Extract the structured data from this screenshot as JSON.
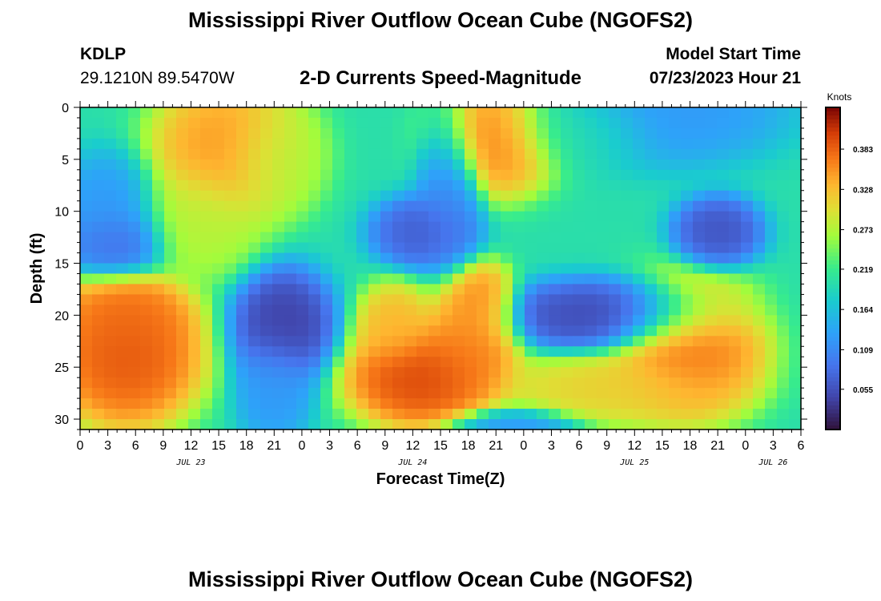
{
  "header": {
    "title": "Mississippi River Outflow Ocean Cube (NGOFS2)",
    "station_id": "KDLP",
    "station_coords": "29.1210N  89.5470W",
    "plot_title": "2-D Currents Speed-Magnitude",
    "model_label": "Model Start Time",
    "model_time": "07/23/2023 Hour 21"
  },
  "footer": {
    "title": "Mississippi River Outflow Ocean Cube (NGOFS2)"
  },
  "chart_data": {
    "type": "heatmap",
    "xlabel": "Forecast Time(Z)",
    "ylabel": "Depth (ft)",
    "xlim": [
      0,
      78
    ],
    "ylim": [
      0,
      31
    ],
    "x_tick_labels": [
      "0",
      "3",
      "6",
      "9",
      "12",
      "15",
      "18",
      "21",
      "0",
      "3",
      "6",
      "9",
      "12",
      "15",
      "18",
      "21",
      "0",
      "3",
      "6",
      "9",
      "12",
      "15",
      "18",
      "21",
      "0",
      "3",
      "6"
    ],
    "y_ticks": [
      0,
      5,
      10,
      15,
      20,
      25,
      30
    ],
    "date_labels": [
      {
        "label": "JUL 23",
        "hour": 12
      },
      {
        "label": "JUL 24",
        "hour": 36
      },
      {
        "label": "JUL 25",
        "hour": 60
      },
      {
        "label": "JUL 26",
        "hour": 75
      }
    ],
    "colorbar": {
      "label": "Knots",
      "min": 0.0,
      "max": 0.44,
      "ticks": [
        0.055,
        0.109,
        0.164,
        0.219,
        0.273,
        0.328,
        0.383
      ]
    },
    "features": [
      {
        "x": 3,
        "y": 10,
        "value": 0.12,
        "sx": 4,
        "sy": 4
      },
      {
        "x": 4,
        "y": 13,
        "value": 0.07,
        "sx": 4,
        "sy": 2.5
      },
      {
        "x": 16,
        "y": 4,
        "value": 0.36,
        "sx": 6,
        "sy": 5
      },
      {
        "x": 13,
        "y": 11,
        "value": 0.28,
        "sx": 5,
        "sy": 4
      },
      {
        "x": 21,
        "y": 5,
        "value": 0.27,
        "sx": 4,
        "sy": 4
      },
      {
        "x": 40,
        "y": 8,
        "value": 0.1,
        "sx": 2.5,
        "sy": 6
      },
      {
        "x": 37,
        "y": 12,
        "value": 0.06,
        "sx": 4,
        "sy": 2.5
      },
      {
        "x": 45,
        "y": 3,
        "value": 0.37,
        "sx": 5,
        "sy": 4
      },
      {
        "x": 64,
        "y": 0,
        "value": 0.12,
        "sx": 9,
        "sy": 4
      },
      {
        "x": 69,
        "y": 12,
        "value": 0.05,
        "sx": 3.5,
        "sy": 2.5
      },
      {
        "x": 54,
        "y": 2,
        "value": 0.2,
        "sx": 6,
        "sy": 3
      },
      {
        "x": 5,
        "y": 24,
        "value": 0.4,
        "sx": 6,
        "sy": 5
      },
      {
        "x": 5,
        "y": 20,
        "value": 0.38,
        "sx": 5,
        "sy": 3
      },
      {
        "x": 22,
        "y": 21,
        "value": 0.03,
        "sx": 4,
        "sy": 4
      },
      {
        "x": 21,
        "y": 27,
        "value": 0.12,
        "sx": 3,
        "sy": 4
      },
      {
        "x": 37,
        "y": 26,
        "value": 0.41,
        "sx": 6,
        "sy": 3.5
      },
      {
        "x": 42,
        "y": 23,
        "value": 0.37,
        "sx": 4,
        "sy": 4
      },
      {
        "x": 43,
        "y": 19,
        "value": 0.37,
        "sx": 3,
        "sy": 3
      },
      {
        "x": 34,
        "y": 21,
        "value": 0.34,
        "sx": 3,
        "sy": 3
      },
      {
        "x": 57,
        "y": 20,
        "value": 0.04,
        "sx": 9,
        "sy": 2.5
      },
      {
        "x": 66,
        "y": 23,
        "value": 0.38,
        "sx": 6,
        "sy": 5
      },
      {
        "x": 58,
        "y": 27,
        "value": 0.32,
        "sx": 9,
        "sy": 2.5
      },
      {
        "x": 47,
        "y": 31,
        "value": 0.12,
        "sx": 5,
        "sy": 1.5
      }
    ],
    "background_value": 0.2
  }
}
